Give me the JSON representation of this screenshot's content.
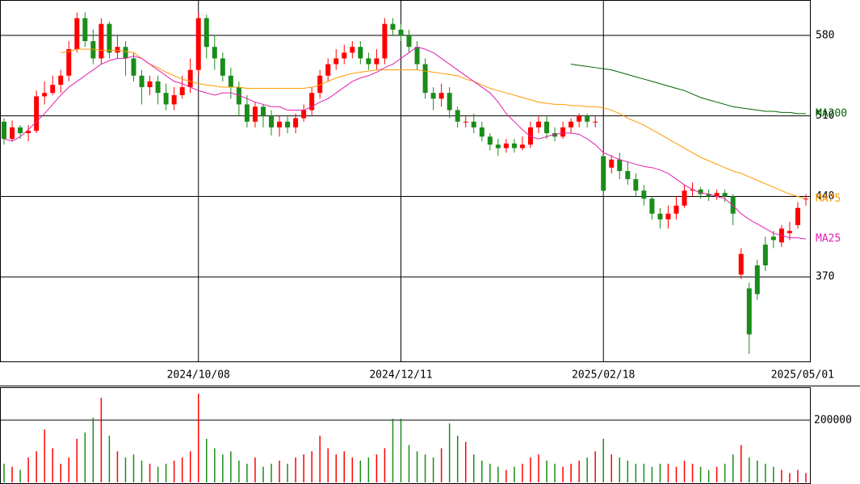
{
  "chart_data": {
    "type": "candlestick",
    "categories": [
      null,
      null,
      null,
      null,
      null,
      null,
      null,
      null,
      null,
      null,
      null,
      null,
      null,
      null,
      null,
      null,
      null,
      null,
      null,
      null,
      null,
      null,
      null,
      null,
      "2024/10/08",
      null,
      null,
      null,
      null,
      null,
      null,
      null,
      null,
      null,
      null,
      null,
      null,
      null,
      null,
      null,
      null,
      null,
      null,
      null,
      null,
      null,
      null,
      null,
      null,
      "2024/12/11",
      null,
      null,
      null,
      null,
      null,
      null,
      null,
      null,
      null,
      null,
      null,
      null,
      null,
      null,
      null,
      null,
      null,
      null,
      null,
      null,
      null,
      null,
      null,
      null,
      "2025/02/18",
      null,
      null,
      null,
      null,
      null,
      null,
      null,
      null,
      null,
      null,
      null,
      null,
      null,
      null,
      null,
      null,
      null,
      null,
      null,
      null,
      null,
      null,
      null,
      null,
      "2025/05/01"
    ],
    "open": [
      505,
      490,
      500,
      495,
      497,
      527,
      530,
      537,
      545,
      568,
      595,
      575,
      560,
      590,
      565,
      570,
      560,
      545,
      535,
      540,
      530,
      520,
      528,
      535,
      550,
      595,
      570,
      560,
      545,
      535,
      520,
      505,
      518,
      510,
      500,
      505,
      500,
      508,
      515,
      530,
      545,
      555,
      560,
      565,
      570,
      560,
      555,
      560,
      590,
      585,
      580,
      570,
      555,
      530,
      525,
      530,
      515,
      505,
      505,
      500,
      492,
      485,
      482,
      486,
      482,
      485,
      500,
      505,
      495,
      492,
      500,
      505,
      510,
      505,
      475,
      465,
      472,
      462,
      455,
      445,
      438,
      425,
      420,
      425,
      432,
      445,
      446,
      442,
      440,
      443,
      440,
      372,
      360,
      380,
      398,
      405,
      400,
      408,
      415,
      438
    ],
    "high": [
      508,
      506,
      502,
      502,
      532,
      540,
      545,
      550,
      575,
      600,
      600,
      585,
      595,
      592,
      580,
      575,
      565,
      550,
      545,
      545,
      538,
      535,
      545,
      560,
      600,
      598,
      580,
      565,
      552,
      540,
      528,
      522,
      520,
      515,
      510,
      510,
      512,
      520,
      535,
      550,
      560,
      568,
      572,
      575,
      575,
      565,
      568,
      595,
      595,
      590,
      585,
      575,
      560,
      535,
      538,
      535,
      518,
      510,
      512,
      505,
      495,
      490,
      490,
      490,
      492,
      505,
      510,
      510,
      500,
      505,
      508,
      512,
      512,
      510,
      478,
      476,
      478,
      470,
      460,
      450,
      440,
      430,
      432,
      440,
      450,
      452,
      448,
      446,
      446,
      446,
      442,
      395,
      365,
      385,
      405,
      410,
      415,
      418,
      435,
      442
    ],
    "low": [
      485,
      488,
      490,
      488,
      495,
      520,
      528,
      530,
      540,
      565,
      570,
      555,
      555,
      560,
      560,
      545,
      540,
      520,
      528,
      520,
      515,
      515,
      525,
      530,
      545,
      560,
      550,
      540,
      525,
      510,
      500,
      500,
      500,
      493,
      492,
      495,
      495,
      505,
      510,
      525,
      540,
      550,
      555,
      560,
      555,
      550,
      550,
      555,
      580,
      575,
      565,
      550,
      525,
      515,
      518,
      508,
      500,
      500,
      495,
      488,
      480,
      475,
      478,
      478,
      480,
      482,
      495,
      490,
      488,
      490,
      495,
      500,
      500,
      500,
      440,
      460,
      455,
      450,
      440,
      432,
      420,
      412,
      412,
      420,
      430,
      440,
      438,
      436,
      437,
      435,
      415,
      368,
      303,
      350,
      375,
      395,
      396,
      402,
      412,
      432
    ],
    "close": [
      490,
      500,
      495,
      497,
      527,
      530,
      537,
      545,
      568,
      595,
      575,
      560,
      590,
      565,
      570,
      560,
      545,
      535,
      540,
      530,
      520,
      528,
      535,
      550,
      595,
      570,
      560,
      545,
      535,
      520,
      505,
      518,
      510,
      500,
      505,
      500,
      508,
      515,
      530,
      545,
      555,
      560,
      565,
      570,
      560,
      555,
      560,
      590,
      585,
      580,
      570,
      555,
      530,
      525,
      530,
      515,
      505,
      505,
      500,
      492,
      485,
      482,
      486,
      482,
      485,
      500,
      505,
      495,
      492,
      500,
      505,
      510,
      505,
      505,
      445,
      472,
      462,
      455,
      445,
      438,
      425,
      420,
      425,
      432,
      445,
      446,
      442,
      440,
      443,
      440,
      425,
      390,
      320,
      355,
      380,
      402,
      412,
      410,
      430,
      438
    ],
    "volume": {
      "values": [
        60000,
        50000,
        40000,
        80000,
        100000,
        170000,
        110000,
        60000,
        80000,
        140000,
        160000,
        208000,
        272000,
        150000,
        100000,
        80000,
        90000,
        70000,
        60000,
        50000,
        60000,
        70000,
        80000,
        100000,
        285000,
        140000,
        110000,
        90000,
        100000,
        70000,
        60000,
        80000,
        50000,
        60000,
        70000,
        60000,
        80000,
        90000,
        100000,
        150000,
        110000,
        90000,
        100000,
        80000,
        70000,
        80000,
        90000,
        110000,
        205000,
        205000,
        120000,
        100000,
        90000,
        80000,
        110000,
        190000,
        150000,
        130000,
        90000,
        70000,
        60000,
        50000,
        40000,
        50000,
        60000,
        80000,
        90000,
        70000,
        60000,
        50000,
        60000,
        70000,
        80000,
        100000,
        140000,
        90000,
        80000,
        70000,
        60000,
        60000,
        50000,
        60000,
        60000,
        50000,
        70000,
        60000,
        50000,
        40000,
        50000,
        60000,
        90000,
        120000,
        80000,
        70000,
        60000,
        50000,
        40000,
        30000,
        40000,
        30000
      ],
      "ylim": [
        0,
        306000
      ],
      "yticks": [
        200000
      ]
    },
    "up_color": "#ff0000",
    "down_color": "#1a8c1a",
    "series": [
      {
        "name": "MA200",
        "color": "#006400",
        "values": [
          null,
          null,
          null,
          null,
          null,
          null,
          null,
          null,
          null,
          null,
          null,
          null,
          null,
          null,
          null,
          null,
          null,
          null,
          null,
          null,
          null,
          null,
          null,
          null,
          null,
          null,
          null,
          null,
          null,
          null,
          null,
          null,
          null,
          null,
          null,
          null,
          null,
          null,
          null,
          null,
          null,
          null,
          null,
          null,
          null,
          null,
          null,
          null,
          null,
          null,
          null,
          null,
          null,
          null,
          null,
          null,
          null,
          null,
          null,
          null,
          null,
          null,
          null,
          null,
          null,
          null,
          null,
          null,
          null,
          null,
          555,
          554,
          553,
          552,
          551,
          550,
          548,
          546,
          544,
          542,
          540,
          538,
          536,
          534,
          532,
          529,
          526,
          524,
          522,
          520,
          518,
          517,
          516,
          515,
          514,
          514,
          513,
          513,
          512,
          512
        ]
      },
      {
        "name": "MA75",
        "color": "#ff9900",
        "values": [
          null,
          null,
          null,
          null,
          null,
          null,
          null,
          565,
          566,
          568,
          568,
          568,
          567,
          567,
          567,
          566,
          565,
          560,
          555,
          552,
          548,
          545,
          542,
          540,
          538,
          537,
          536,
          535,
          535,
          535,
          534,
          534,
          534,
          534,
          534,
          534,
          534,
          534,
          535,
          537,
          540,
          543,
          545,
          547,
          548,
          549,
          550,
          550,
          550,
          550,
          550,
          550,
          549,
          548,
          547,
          546,
          545,
          542,
          540,
          537,
          534,
          532,
          530,
          528,
          526,
          524,
          522,
          521,
          520,
          520,
          519,
          519,
          518,
          518,
          517,
          515,
          512,
          508,
          505,
          502,
          498,
          494,
          490,
          486,
          482,
          478,
          474,
          471,
          468,
          465,
          462,
          460,
          457,
          454,
          451,
          448,
          445,
          442,
          440,
          438
        ]
      },
      {
        "name": "MA25",
        "color": "#e020b0",
        "values": [
          490,
          488,
          492,
          498,
          505,
          512,
          520,
          528,
          535,
          540,
          545,
          550,
          555,
          558,
          560,
          560,
          562,
          560,
          555,
          550,
          545,
          540,
          538,
          535,
          532,
          530,
          528,
          530,
          530,
          528,
          525,
          522,
          520,
          518,
          518,
          515,
          515,
          515,
          518,
          522,
          525,
          530,
          535,
          540,
          543,
          545,
          548,
          552,
          555,
          560,
          565,
          570,
          568,
          565,
          560,
          555,
          550,
          545,
          540,
          535,
          530,
          522,
          512,
          505,
          498,
          492,
          490,
          492,
          494,
          495,
          495,
          494,
          490,
          485,
          478,
          475,
          472,
          470,
          468,
          466,
          465,
          463,
          460,
          455,
          450,
          446,
          443,
          442,
          440,
          438,
          432,
          425,
          420,
          416,
          412,
          408,
          406,
          404,
          404,
          403
        ]
      }
    ],
    "ylim": [
      296.5,
      610.8
    ],
    "yticks": [
      370,
      440,
      510,
      580
    ],
    "grid": true
  }
}
